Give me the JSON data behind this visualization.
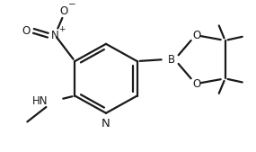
{
  "bg_color": "#ffffff",
  "line_color": "#1a1a1a",
  "line_width": 1.6,
  "font_size_atom": 8.5,
  "font_size_charge": 6.5,
  "figsize": [
    2.85,
    1.69
  ],
  "dpi": 100,
  "xlim": [
    0,
    285
  ],
  "ylim": [
    0,
    169
  ]
}
